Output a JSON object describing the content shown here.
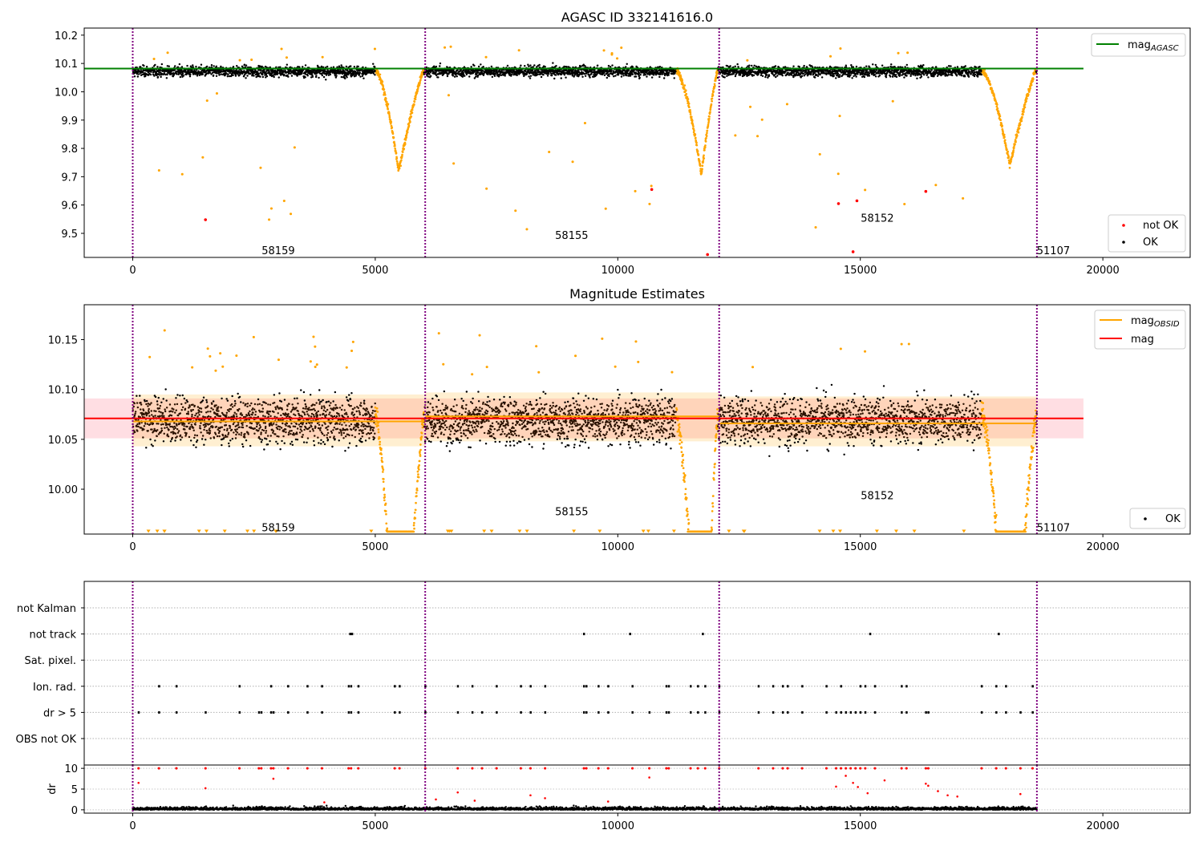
{
  "chart_data": [
    {
      "type": "scatter",
      "title": "AGASC ID 332141616.0",
      "xlim": [
        -1000,
        21800
      ],
      "ylim": [
        9.415,
        10.225
      ],
      "x_ticks": [
        0,
        5000,
        10000,
        15000,
        20000
      ],
      "y_ticks": [
        9.5,
        9.6,
        9.7,
        9.8,
        9.9,
        10.0,
        10.1,
        10.2
      ],
      "y_tick_labels": [
        "9.5",
        "9.6",
        "9.7",
        "9.8",
        "9.9",
        "10.0",
        "10.1",
        "10.2"
      ],
      "obsid_boundaries": [
        0,
        6030,
        12090,
        18640
      ],
      "obsid_labels": [
        {
          "text": "58159",
          "x": 3000,
          "y": 9.44
        },
        {
          "text": "58155",
          "x": 9050,
          "y": 9.495
        },
        {
          "text": "58152",
          "x": 15350,
          "y": 9.555
        },
        {
          "text": "51107",
          "x": 18980,
          "y": 9.44
        }
      ],
      "mag_agasc": {
        "value": 10.082,
        "x_range": [
          -1000,
          19600
        ]
      },
      "not_ok_points": [
        {
          "x": 1500,
          "y": 9.548
        },
        {
          "x": 10700,
          "y": 9.655
        },
        {
          "x": 11850,
          "y": 9.425
        },
        {
          "x": 14550,
          "y": 9.605
        },
        {
          "x": 14850,
          "y": 9.435
        },
        {
          "x": 14930,
          "y": 9.615
        },
        {
          "x": 16350,
          "y": 9.648
        }
      ],
      "ok_band": {
        "low": 10.04,
        "high": 10.11
      },
      "dip_minima": [
        {
          "start": 5000,
          "min_x": 5480,
          "end": 6000,
          "min": 9.72
        },
        {
          "start": 11200,
          "min_x": 11720,
          "end": 12060,
          "min": 9.71
        },
        {
          "start": 17500,
          "min_x": 18080,
          "end": 18620,
          "min": 9.74
        }
      ],
      "legend": [
        "mag_AGASC",
        "not OK",
        "OK"
      ],
      "colors": {
        "ok": "#000000",
        "outlier": "#FFA500",
        "not_ok": "#FF0000",
        "mag_agasc": "#008000",
        "boundary": "#800080"
      }
    },
    {
      "type": "scatter",
      "title": "Magnitude Estimates",
      "xlim": [
        -1000,
        21800
      ],
      "ylim": [
        9.955,
        10.185
      ],
      "x_ticks": [
        0,
        5000,
        10000,
        15000,
        20000
      ],
      "y_ticks": [
        10.0,
        10.05,
        10.1,
        10.15
      ],
      "y_tick_labels": [
        "10.00",
        "10.05",
        "10.10",
        "10.15"
      ],
      "obsid_labels": [
        {
          "text": "58159",
          "x": 3000,
          "y": 9.962
        },
        {
          "text": "58155",
          "x": 9050,
          "y": 9.978
        },
        {
          "text": "58152",
          "x": 15350,
          "y": 9.994
        },
        {
          "text": "51107",
          "x": 18980,
          "y": 9.962
        }
      ],
      "mag": {
        "value": 10.071,
        "sigma_low": 10.051,
        "sigma_high": 10.091,
        "x_range": [
          -1000,
          19600
        ]
      },
      "mag_obsid": [
        {
          "x_range": [
            0,
            6030
          ],
          "value": 10.068,
          "low": 10.043,
          "high": 10.095
        },
        {
          "x_range": [
            6030,
            12090
          ],
          "value": 10.073,
          "low": 10.048,
          "high": 10.097
        },
        {
          "x_range": [
            12090,
            18640
          ],
          "value": 10.066,
          "low": 10.043,
          "high": 10.093
        }
      ],
      "legend": [
        "mag_OBSID",
        "mag",
        "OK"
      ],
      "colors": {
        "mag": "#FF0000",
        "mag_obsid": "#FFA500",
        "mag_band": "#FFB6C1"
      }
    },
    {
      "type": "scatter",
      "title": "",
      "xlim": [
        -1000,
        21800
      ],
      "x_ticks": [
        0,
        5000,
        10000,
        15000,
        20000
      ],
      "flag_rows": [
        "not Kalman",
        "not track",
        "Sat. pixel.",
        "Ion. rad.",
        "dr > 5",
        "OBS not OK"
      ],
      "flag_events": {
        "not track": [
          4480,
          4520,
          9300,
          10250,
          11750,
          15200,
          17850
        ],
        "Ion. rad.": [
          540,
          900,
          2200,
          2850,
          3200,
          3600,
          3900,
          4450,
          4500,
          4650,
          5400,
          5500,
          6030,
          6700,
          7000,
          7500,
          8000,
          8200,
          8500,
          9300,
          9350,
          9600,
          9800,
          10300,
          11000,
          11050,
          11500,
          11650,
          11800,
          12090,
          12900,
          13200,
          13400,
          13500,
          13800,
          14300,
          14600,
          15000,
          15100,
          15300,
          15850,
          15950,
          17500,
          17800,
          18000,
          18550
        ],
        "dr > 5": [
          120,
          540,
          900,
          1500,
          2200,
          2600,
          2650,
          2850,
          2900,
          3200,
          3600,
          3900,
          4450,
          4500,
          4650,
          5400,
          5500,
          6030,
          6700,
          7000,
          7200,
          7500,
          8000,
          8200,
          8500,
          9300,
          9350,
          9600,
          9800,
          10300,
          10650,
          11000,
          11050,
          11500,
          11650,
          11800,
          12090,
          12900,
          13200,
          13400,
          13500,
          13800,
          14300,
          14500,
          14600,
          14700,
          14800,
          14900,
          15000,
          15100,
          15300,
          15850,
          15950,
          16350,
          16400,
          17500,
          17800,
          18000,
          18300,
          18550
        ]
      },
      "dr_panel": {
        "ylabel": "dr",
        "y_ticks": [
          0,
          5,
          10
        ],
        "y_tick_labels": [
          "0",
          "5",
          "10"
        ],
        "ylim": [
          -0.8,
          10.8
        ],
        "clip": 10
      },
      "dr_outliers": [
        {
          "x": 120,
          "y": 6.5
        },
        {
          "x": 1500,
          "y": 5.2
        },
        {
          "x": 2900,
          "y": 7.5
        },
        {
          "x": 6700,
          "y": 4.2
        },
        {
          "x": 8200,
          "y": 3.5
        },
        {
          "x": 8500,
          "y": 2.8
        },
        {
          "x": 10650,
          "y": 7.8
        },
        {
          "x": 14500,
          "y": 5.6
        },
        {
          "x": 14700,
          "y": 8.2
        },
        {
          "x": 14850,
          "y": 6.5
        },
        {
          "x": 14950,
          "y": 5.5
        },
        {
          "x": 15150,
          "y": 4.0
        },
        {
          "x": 15500,
          "y": 7.1
        },
        {
          "x": 16350,
          "y": 6.3
        },
        {
          "x": 16400,
          "y": 5.8
        },
        {
          "x": 16600,
          "y": 4.5
        },
        {
          "x": 16800,
          "y": 3.5
        },
        {
          "x": 17000,
          "y": 3.2
        },
        {
          "x": 18300,
          "y": 3.8
        },
        {
          "x": 6250,
          "y": 2.5
        },
        {
          "x": 9800,
          "y": 2.0
        },
        {
          "x": 3950,
          "y": 1.8
        },
        {
          "x": 7050,
          "y": 2.2
        }
      ],
      "colors": {
        "flag": "#000000",
        "dr_outlier": "#FF0000"
      }
    }
  ]
}
